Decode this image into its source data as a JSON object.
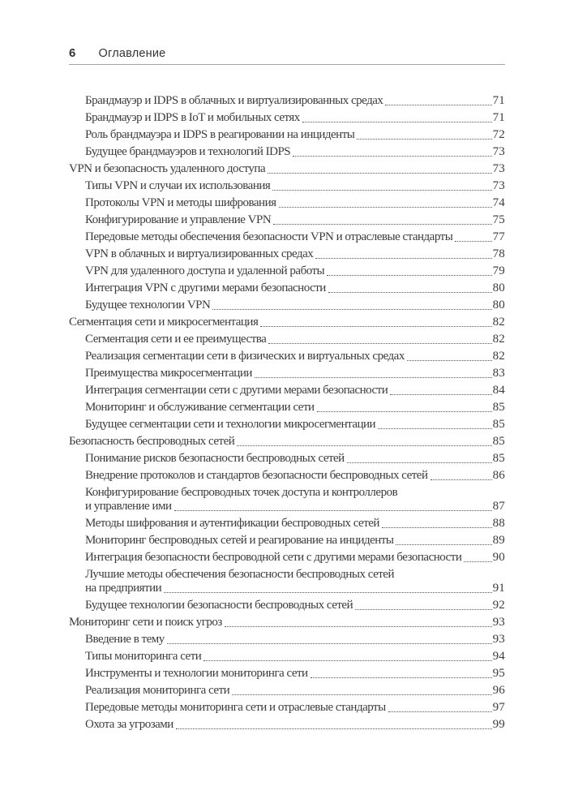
{
  "header": {
    "page_number": "6",
    "title": "Оглавление"
  },
  "colors": {
    "background": "#ffffff",
    "text": "#3c3c3c",
    "header_text": "#343434",
    "rule": "#a3a3a3"
  },
  "toc": {
    "entries": [
      {
        "level": 1,
        "title": "Брандмауэр и IDPS в облачных и виртуализированных средах",
        "page": "71"
      },
      {
        "level": 1,
        "title": "Брандмауэр и IDPS в IoT и мобильных сетях",
        "page": "71"
      },
      {
        "level": 1,
        "title": "Роль брандмауэра и IDPS в реагировании на инциденты",
        "page": "72"
      },
      {
        "level": 1,
        "title": "Будущее брандмауэров и технологий IDPS",
        "page": "73"
      },
      {
        "level": 0,
        "title": "VPN и безопасность удаленного доступа",
        "page": "73"
      },
      {
        "level": 1,
        "title": "Типы VPN и случаи их использования",
        "page": "73"
      },
      {
        "level": 1,
        "title": "Протоколы VPN и методы шифрования",
        "page": "74"
      },
      {
        "level": 1,
        "title": "Конфигурирование и управление VPN",
        "page": "75"
      },
      {
        "level": 1,
        "title": "Передовые методы обеспечения безопасности VPN и отраслевые стандарты",
        "page": "77"
      },
      {
        "level": 1,
        "title": "VPN в облачных и виртуализированных средах",
        "page": "78"
      },
      {
        "level": 1,
        "title": "VPN для удаленного доступа и удаленной работы",
        "page": "79"
      },
      {
        "level": 1,
        "title": "Интеграция VPN с другими мерами безопасности",
        "page": "80"
      },
      {
        "level": 1,
        "title": "Будущее технологии VPN",
        "page": "80"
      },
      {
        "level": 0,
        "title": "Сегментация сети и микросегментация",
        "page": "82"
      },
      {
        "level": 1,
        "title": "Сегментация сети и ее преимущества",
        "page": "82"
      },
      {
        "level": 1,
        "title": "Реализация сегментации сети в физических и виртуальных средах",
        "page": "82"
      },
      {
        "level": 1,
        "title": "Преимущества микросегментации",
        "page": "83"
      },
      {
        "level": 1,
        "title": "Интеграция сегментации сети с другими мерами безопасности",
        "page": "84"
      },
      {
        "level": 1,
        "title": "Мониторинг и обслуживание сегментации сети",
        "page": "85"
      },
      {
        "level": 1,
        "title": "Будущее сегментации сети и технологии микросегментации",
        "page": "85"
      },
      {
        "level": 0,
        "title": "Безопасность беспроводных сетей",
        "page": "85"
      },
      {
        "level": 1,
        "title": "Понимание рисков безопасности беспроводных сетей",
        "page": "85"
      },
      {
        "level": 1,
        "title": "Внедрение протоколов и стандартов безопасности беспроводных сетей",
        "page": "86"
      },
      {
        "level": 1,
        "title": "Конфигурирование беспроводных точек доступа и контроллеров",
        "title2": "и управление ими",
        "page": "87"
      },
      {
        "level": 1,
        "title": "Методы шифрования и аутентификации беспроводных сетей",
        "page": "88"
      },
      {
        "level": 1,
        "title": "Мониторинг беспроводных сетей и реагирование на инциденты",
        "page": "89"
      },
      {
        "level": 1,
        "title": "Интеграция безопасности беспроводной сети с другими мерами безопасности",
        "page": "90"
      },
      {
        "level": 1,
        "title": "Лучшие методы обеспечения безопасности беспроводных сетей",
        "title2": "на предприятии",
        "page": "91"
      },
      {
        "level": 1,
        "title": "Будущее технологии безопасности беспроводных сетей",
        "page": "92"
      },
      {
        "level": 0,
        "title": "Мониторинг сети и поиск угроз",
        "page": "93"
      },
      {
        "level": 1,
        "title": "Введение в тему",
        "page": "93"
      },
      {
        "level": 1,
        "title": "Типы мониторинга сети",
        "page": "94"
      },
      {
        "level": 1,
        "title": "Инструменты и технологии мониторинга сети",
        "page": "95"
      },
      {
        "level": 1,
        "title": "Реализация мониторинга сети",
        "page": "96"
      },
      {
        "level": 1,
        "title": "Передовые методы мониторинга сети и отраслевые стандарты",
        "page": "97"
      },
      {
        "level": 1,
        "title": "Охота за угрозами",
        "page": "99"
      }
    ]
  }
}
